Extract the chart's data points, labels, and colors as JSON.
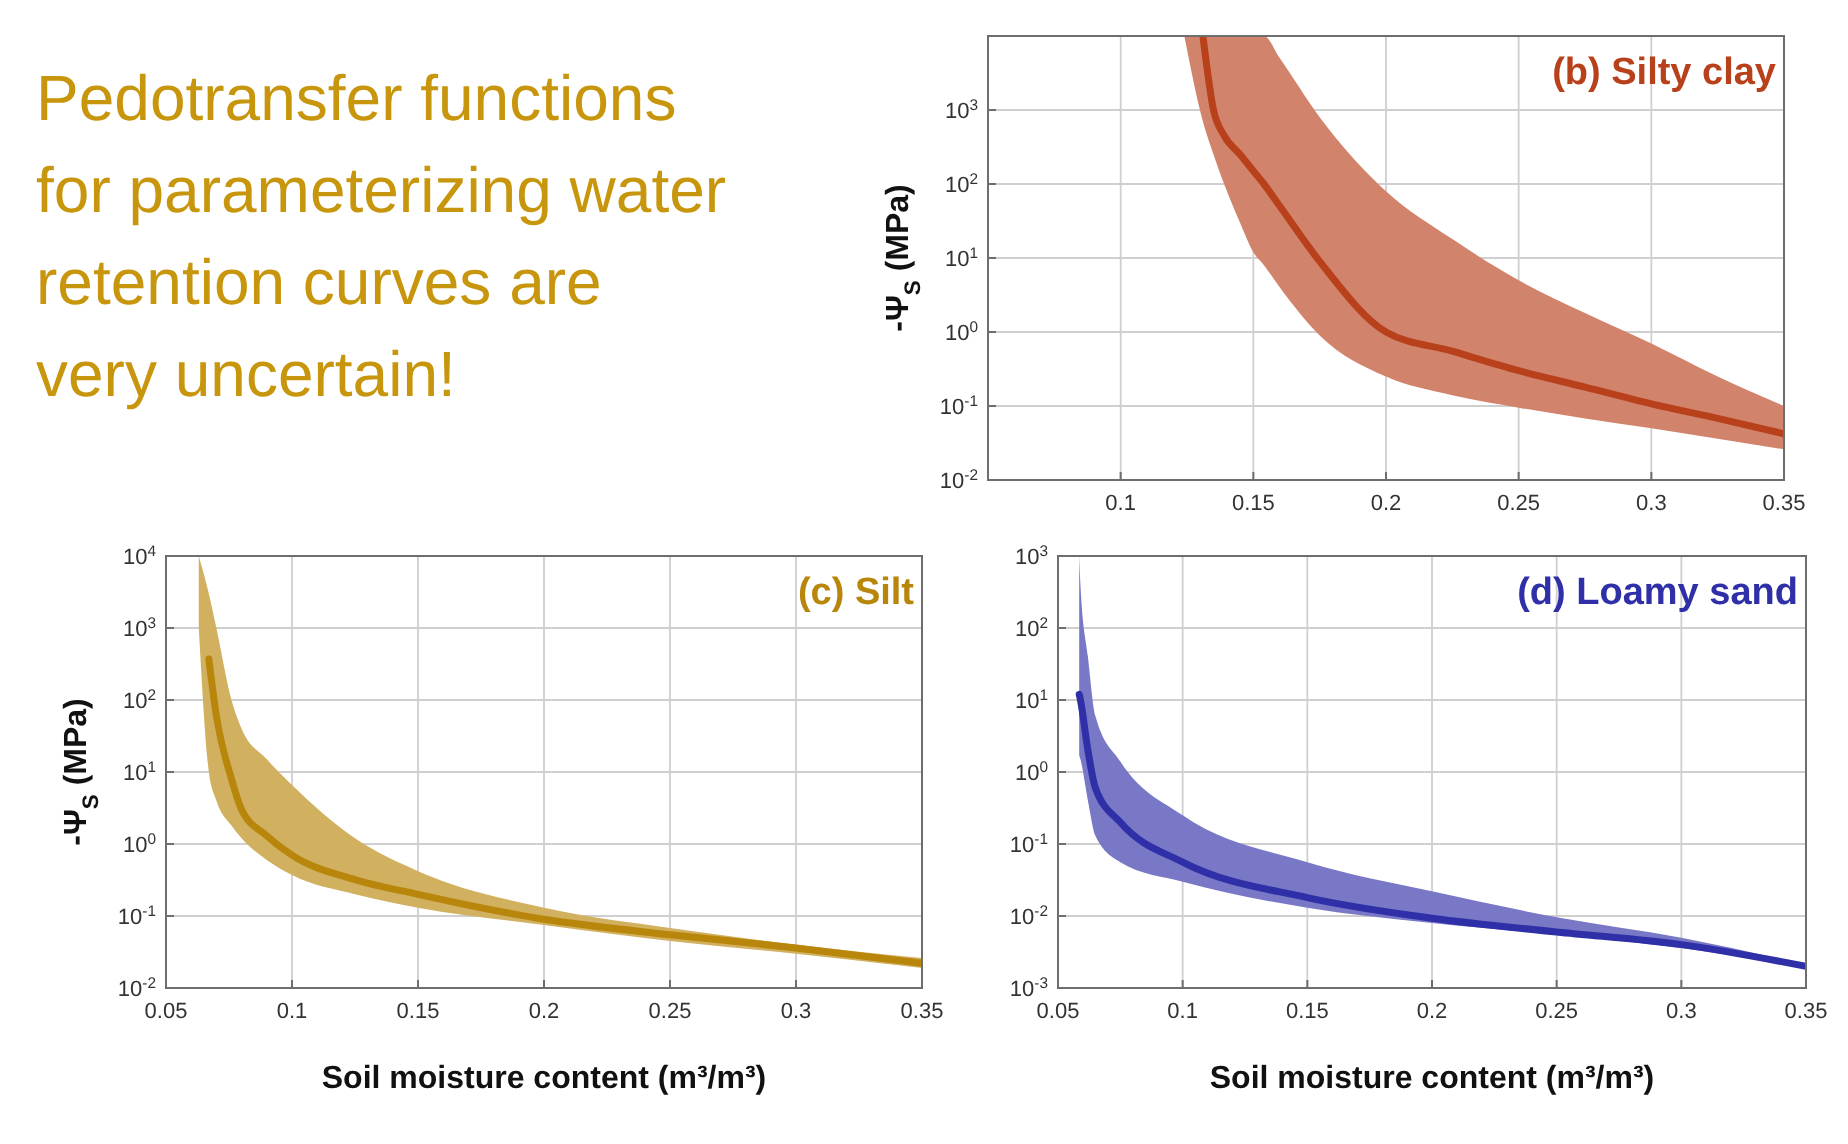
{
  "chart_data": [
    {
      "type": "other",
      "title": "Pedotransfer functions for parameterizing water retention curves are very uncertain!"
    },
    {
      "type": "line",
      "title": "(b) Silty clay",
      "ylabel": "-Ψ$_{S}$ (MPa)",
      "log": "y",
      "grid": true,
      "xlim": [
        0.05,
        0.35
      ],
      "xticks": [
        0.1,
        0.15,
        0.2,
        0.25,
        0.3,
        0.35
      ],
      "ylim": [
        0.01,
        10000
      ],
      "yticks": [
        {
          "value": 0.01,
          "label": "10$^{-2}$"
        },
        {
          "value": 0.1,
          "label": "10$^{-1}$"
        },
        {
          "value": 1,
          "label": "10$^{0}$"
        },
        {
          "value": 10,
          "label": "10$^{1}$"
        },
        {
          "value": 100,
          "label": "10$^{2}$"
        },
        {
          "value": 1000,
          "label": "10$^{3}$"
        }
      ],
      "x": [
        0.124,
        0.131,
        0.135,
        0.139,
        0.145,
        0.15,
        0.154,
        0.16,
        0.175,
        0.2,
        0.225,
        0.25,
        0.275,
        0.3,
        0.325,
        0.35
      ],
      "series": [
        {
          "color": "#b8411c",
          "values": [
            null,
            10000,
            1000,
            450,
            250,
            150,
            100,
            50,
            9,
            1,
            0.55,
            0.3,
            0.18,
            0.107,
            0.068,
            0.042
          ],
          "lower": [
            10000,
            700,
            250,
            100,
            30,
            12,
            8,
            4,
            0.9,
            0.25,
            0.14,
            0.095,
            0.068,
            0.05,
            0.036,
            0.026
          ],
          "upper": [
            10000,
            10000,
            10000,
            10000,
            10000,
            10000,
            10000,
            5000,
            800,
            80,
            18,
            5,
            1.8,
            0.7,
            0.25,
            0.1
          ]
        }
      ]
    },
    {
      "type": "line",
      "title": "(c) Silt",
      "xlabel": "Soil moisture content (m³/m³)",
      "ylabel": "-Ψ$_{S}$ (MPa)",
      "log": "y",
      "grid": true,
      "xlim": [
        0.05,
        0.35
      ],
      "xticks": [
        0.05,
        0.1,
        0.15,
        0.2,
        0.25,
        0.3,
        0.35
      ],
      "ylim": [
        0.01,
        10000
      ],
      "yticks": [
        {
          "value": 0.01,
          "label": "10$^{-2}$"
        },
        {
          "value": 0.1,
          "label": "10$^{-1}$"
        },
        {
          "value": 1,
          "label": "10$^{0}$"
        },
        {
          "value": 10,
          "label": "10$^{1}$"
        },
        {
          "value": 100,
          "label": "10$^{2}$"
        },
        {
          "value": 1000,
          "label": "10$^{3}$"
        },
        {
          "value": 10000,
          "label": "10$^{4}$"
        }
      ],
      "x": [
        0.063,
        0.067,
        0.07,
        0.076,
        0.08,
        0.09,
        0.1,
        0.125,
        0.15,
        0.2,
        0.25,
        0.3,
        0.35
      ],
      "series": [
        {
          "color": "#b8860b",
          "values": [
            null,
            370,
            60,
            8,
            3,
            1.3,
            0.7,
            0.32,
            0.2,
            0.09,
            0.055,
            0.036,
            0.022
          ],
          "lower": [
            1000,
            10,
            4,
            1.8,
            1.2,
            0.6,
            0.37,
            0.2,
            0.13,
            0.075,
            0.045,
            0.03,
            0.019
          ],
          "upper": [
            10000,
            3000,
            1000,
            100,
            40,
            15,
            6.6,
            1.2,
            0.42,
            0.13,
            0.068,
            0.04,
            0.026
          ]
        }
      ]
    },
    {
      "type": "line",
      "title": "(d) Loamy sand",
      "xlabel": "Soil moisture content (m³/m³)",
      "log": "y",
      "grid": true,
      "xlim": [
        0.05,
        0.35
      ],
      "xticks": [
        0.05,
        0.1,
        0.15,
        0.2,
        0.25,
        0.3,
        0.35
      ],
      "ylim": [
        0.001,
        1000
      ],
      "yticks": [
        {
          "value": 0.001,
          "label": "10$^{-3}$"
        },
        {
          "value": 0.01,
          "label": "10$^{-2}$"
        },
        {
          "value": 0.1,
          "label": "10$^{-1}$"
        },
        {
          "value": 1,
          "label": "10$^{0}$"
        },
        {
          "value": 10,
          "label": "10$^{1}$"
        },
        {
          "value": 100,
          "label": "10$^{2}$"
        },
        {
          "value": 1000,
          "label": "10$^{3}$"
        }
      ],
      "x": [
        0.0585,
        0.059,
        0.062,
        0.065,
        0.075,
        0.1,
        0.15,
        0.2,
        0.25,
        0.3,
        0.35
      ],
      "series": [
        {
          "color": "#2f2fa8",
          "values": [
            12,
            10,
            2,
            0.6,
            0.2,
            0.056,
            0.018,
            0.0093,
            0.006,
            0.004,
            0.002
          ],
          "lower": [
            1.7,
            1.5,
            0.4,
            0.13,
            0.056,
            0.03,
            0.013,
            0.008,
            0.0055,
            0.0036,
            0.0019
          ],
          "upper": [
            1000,
            400,
            40,
            6,
            1.4,
            0.25,
            0.056,
            0.022,
            0.0096,
            0.005,
            0.0021
          ]
        }
      ]
    }
  ]
}
